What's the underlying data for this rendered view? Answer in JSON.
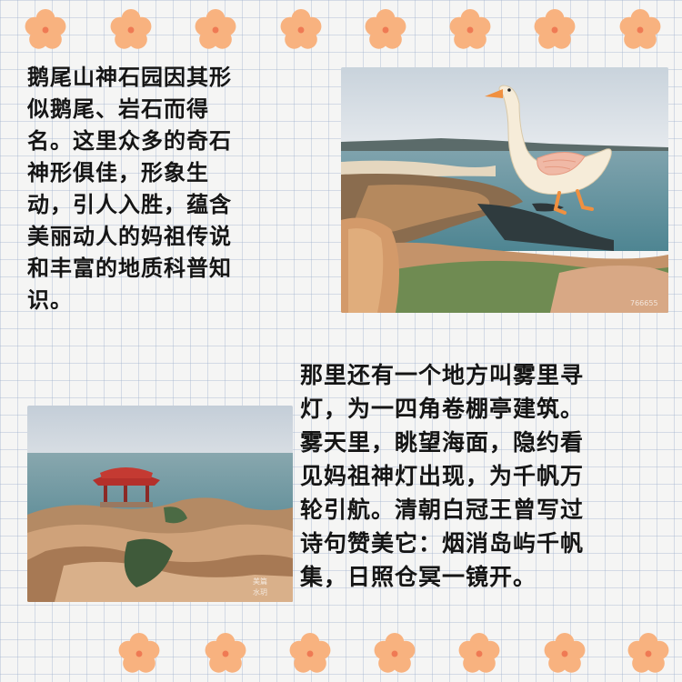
{
  "stories": {
    "goose_tail_mountain": "鹅尾山神石园因其形\n似鹅尾、岩石而得\n名。这里众多的奇石\n神形俱佳，形象生\n动，引人入胜，蕴含\n美丽动人的妈祖传说\n和丰富的地质科普知\n识。",
    "fog_lamp": "那里还有一个地方叫雾里寻\n灯，为一四角卷棚亭建筑。\n雾天里，眺望海面，隐约看\n见妈祖神灯出现，为千帆万\n轮引航。清朝白冠王曾写过\n诗句赞美它：烟消岛屿千帆\n集，日照仓冥一镜开。"
  },
  "photos": {
    "coast_with_goose": {
      "watermark": "766655",
      "illustration": "goose-illustration"
    },
    "pavilion_on_rocks": {
      "watermark_brand": "美篇",
      "watermark_user": "水玥"
    }
  },
  "decorations": {
    "flower_color": "#f8b27f",
    "flower_center_color": "#ef7a54",
    "grid_color": "#c3cde0",
    "background": "#f5f5f4"
  }
}
